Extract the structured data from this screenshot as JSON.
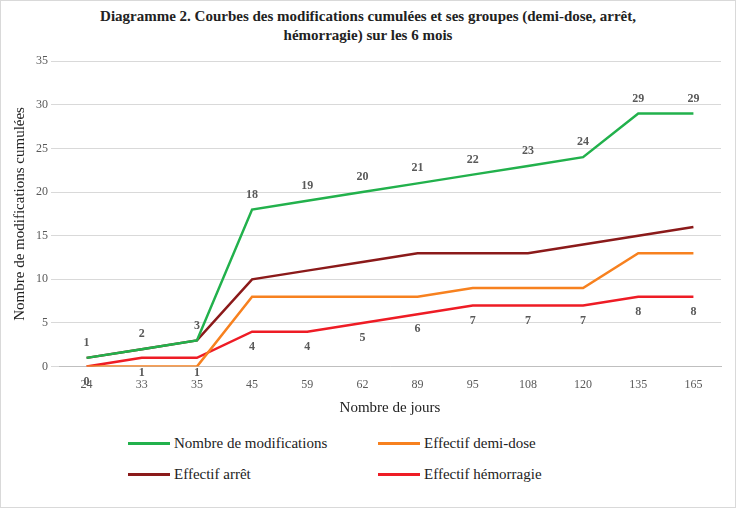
{
  "chart_data": {
    "type": "line",
    "title": "Diagramme 2. Courbes des modifications cumulées et ses groupes (demi-dose, arrêt, hémorragie) sur les 6 mois",
    "x_label": "Nombre de jours",
    "y_label": "Nombre de modifications cumulées",
    "categories": [
      "24",
      "33",
      "35",
      "45",
      "59",
      "62",
      "89",
      "95",
      "108",
      "120",
      "135",
      "165"
    ],
    "series": [
      {
        "name": "Nombre de modifications",
        "color": "#22b14c",
        "data_labels": true,
        "values": [
          1,
          2,
          3,
          18,
          19,
          20,
          21,
          22,
          23,
          24,
          29,
          29
        ]
      },
      {
        "name": "Effectif demi-dose",
        "color": "#f7811f",
        "data_labels": false,
        "values": [
          0,
          0,
          0,
          8,
          8,
          8,
          8,
          9,
          9,
          9,
          13,
          13
        ]
      },
      {
        "name": "Effectif arrêt",
        "color": "#8b1a1a",
        "data_labels": false,
        "values": [
          1,
          2,
          3,
          10,
          11,
          12,
          13,
          13,
          13,
          14,
          15,
          16
        ]
      },
      {
        "name": "Effectif hémorragie",
        "color": "#ee1c25",
        "data_labels": true,
        "values": [
          0,
          1,
          1,
          4,
          4,
          5,
          6,
          7,
          7,
          7,
          8,
          8
        ]
      }
    ],
    "ylim": [
      0,
      35
    ],
    "yticks": [
      0,
      5,
      10,
      15,
      20,
      25,
      30,
      35
    ],
    "grid": true,
    "legend": "bottom"
  }
}
